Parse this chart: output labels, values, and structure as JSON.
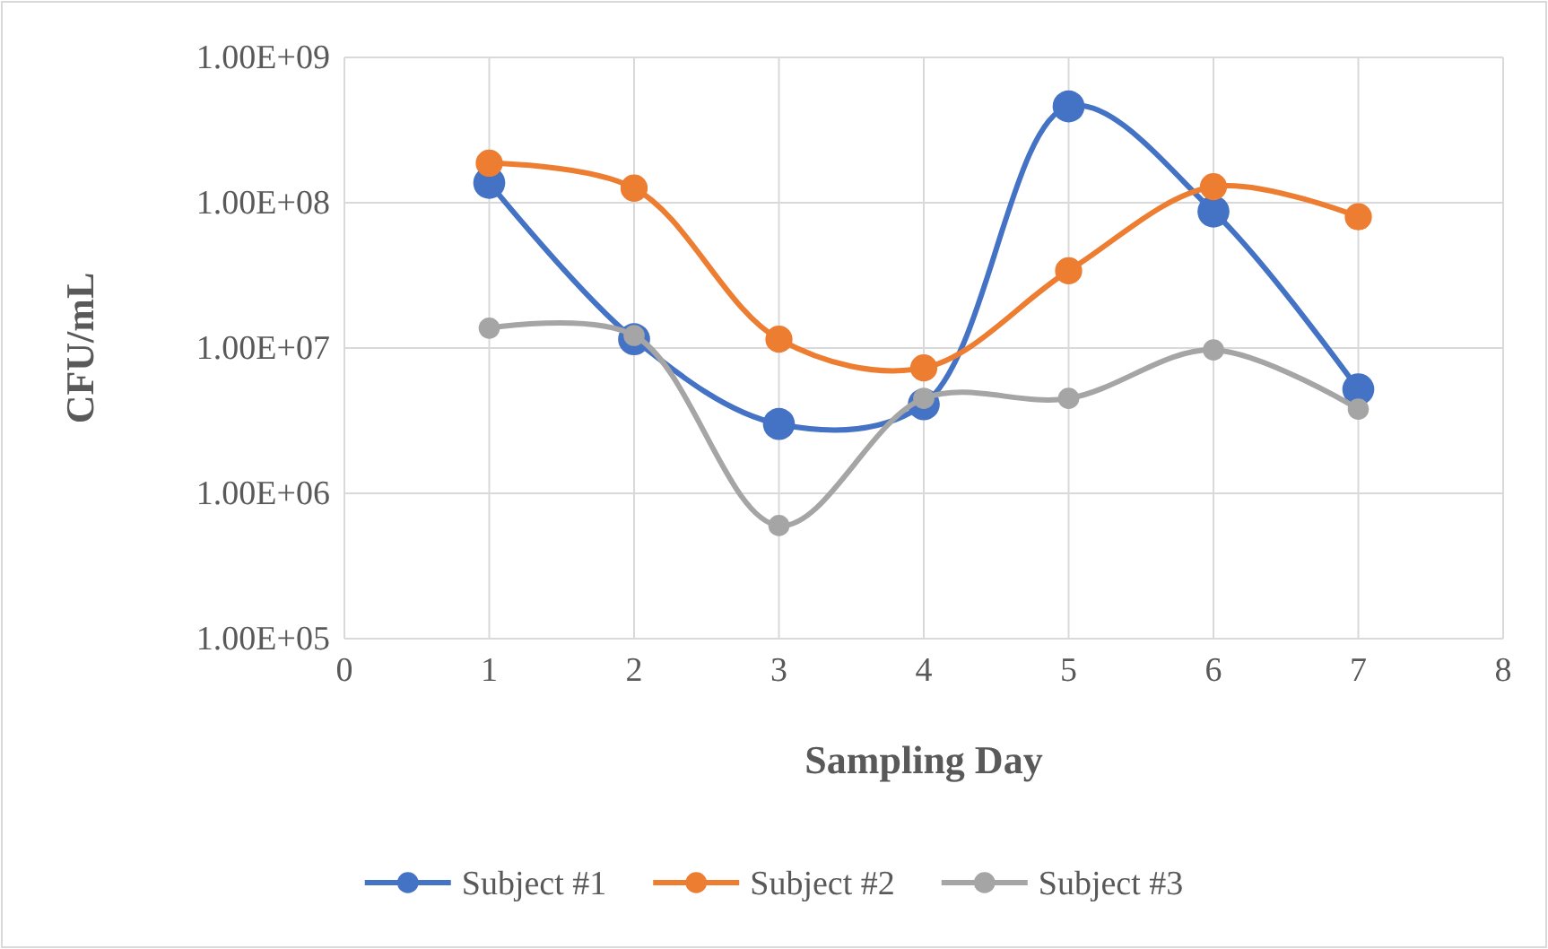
{
  "chart_data": {
    "type": "line",
    "xlabel": "Sampling Day",
    "ylabel": "CFU/mL",
    "series": [
      {
        "name": "Subject #1",
        "color": "#4472c4",
        "x": [
          1,
          2,
          3,
          4,
          5,
          6,
          7
        ],
        "values": [
          137000000,
          11500000,
          3000000,
          4100000,
          460000000,
          87000000,
          5200000
        ]
      },
      {
        "name": "Subject #2",
        "color": "#ed7d31",
        "x": [
          1,
          2,
          3,
          4,
          5,
          6,
          7
        ],
        "values": [
          187000000,
          126000000,
          11500000,
          7300000,
          34000000,
          129000000,
          80000000
        ]
      },
      {
        "name": "Subject #3",
        "color": "#a5a5a5",
        "x": [
          1,
          2,
          3,
          4,
          5,
          6,
          7
        ],
        "values": [
          13700000,
          12200000,
          600000,
          4500000,
          4500000,
          9700000,
          3800000
        ]
      }
    ],
    "xlim": [
      0,
      8
    ],
    "xticks": [
      0,
      1,
      2,
      3,
      4,
      5,
      6,
      7,
      8
    ],
    "ylim": [
      100000,
      1000000000
    ],
    "yticks": [
      {
        "value": 100000,
        "label": "1.00E+05"
      },
      {
        "value": 1000000,
        "label": "1.00E+06"
      },
      {
        "value": 10000000,
        "label": "1.00E+07"
      },
      {
        "value": 100000000,
        "label": "1.00E+08"
      },
      {
        "value": 1000000000,
        "label": "1.00E+09"
      }
    ],
    "log": true,
    "grid": true,
    "legend": "bottom",
    "marker": "circle",
    "line_style": "solid"
  }
}
